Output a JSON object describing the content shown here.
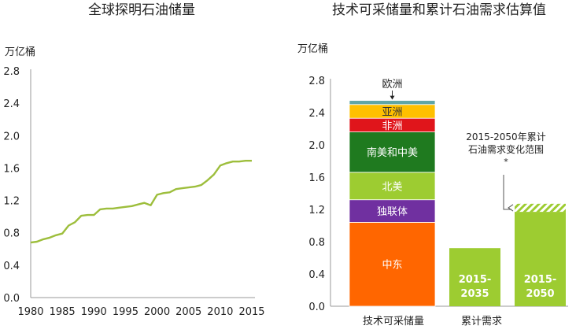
{
  "chart_data": [
    {
      "type": "line",
      "title": "全球探明石油储量",
      "ylabel": "万亿桶",
      "xlabel": "",
      "ylim": [
        0,
        2.8
      ],
      "yticks": [
        "0.0",
        "0.4",
        "0.8",
        "1.2",
        "1.6",
        "2.0",
        "2.4",
        "2.8"
      ],
      "xlim": [
        1980,
        2015
      ],
      "xticks": [
        "1980",
        "1985",
        "1990",
        "1995",
        "2000",
        "2005",
        "2010",
        "2015"
      ],
      "color": "#9dbe3c",
      "series": [
        {
          "name": "全球探明石油储量",
          "x": [
            1980,
            1981,
            1982,
            1983,
            1984,
            1985,
            1986,
            1987,
            1988,
            1989,
            1990,
            1991,
            1992,
            1993,
            1994,
            1995,
            1996,
            1997,
            1998,
            1999,
            2000,
            2001,
            2002,
            2003,
            2004,
            2005,
            2006,
            2007,
            2008,
            2009,
            2010,
            2011,
            2012,
            2013,
            2014,
            2015
          ],
          "values": [
            0.68,
            0.69,
            0.72,
            0.74,
            0.77,
            0.79,
            0.89,
            0.93,
            1.01,
            1.02,
            1.02,
            1.09,
            1.1,
            1.1,
            1.11,
            1.12,
            1.13,
            1.15,
            1.17,
            1.14,
            1.27,
            1.29,
            1.3,
            1.34,
            1.35,
            1.36,
            1.37,
            1.39,
            1.45,
            1.52,
            1.63,
            1.66,
            1.68,
            1.68,
            1.69,
            1.69
          ]
        }
      ]
    },
    {
      "type": "bar",
      "title": "技术可采储量和累计石油需求估算值",
      "ylabel": "万亿桶",
      "ylim": [
        0,
        2.8
      ],
      "yticks": [
        "0.0",
        "0.4",
        "0.8",
        "1.2",
        "1.6",
        "2.0",
        "2.4",
        "2.8"
      ],
      "categories": [
        "技术可采储量",
        "累计需求"
      ],
      "stack": [
        {
          "name": "中东",
          "value": 1.04,
          "color": "#ff6600",
          "text_color": "#ffffff"
        },
        {
          "name": "独联体",
          "value": 0.28,
          "color": "#7030a0",
          "text_color": "#ffffff"
        },
        {
          "name": "北美",
          "value": 0.34,
          "color": "#9dcc31",
          "text_color": "#ffffff"
        },
        {
          "name": "南美和中美",
          "value": 0.5,
          "color": "#1f7a1f",
          "text_color": "#ffffff"
        },
        {
          "name": "非洲",
          "value": 0.17,
          "color": "#e0151b",
          "text_color": "#ffffff"
        },
        {
          "name": "亚洲",
          "value": 0.17,
          "color": "#ffc000",
          "text_color": "#333333"
        },
        {
          "name": "欧洲",
          "value": 0.05,
          "color": "#5fa6a6",
          "text_color": "#222222",
          "callout": true
        }
      ],
      "demand_bars": [
        {
          "label": "2015-2035",
          "value": 0.72,
          "color": "#9dcc31"
        },
        {
          "label": "2015-2050",
          "value": 1.17,
          "range_top": 1.27,
          "color": "#9dcc31"
        }
      ],
      "annotation": {
        "lines": [
          "2015-2050年累计",
          "石油需求变化范围"
        ],
        "footnote": "*"
      }
    }
  ]
}
